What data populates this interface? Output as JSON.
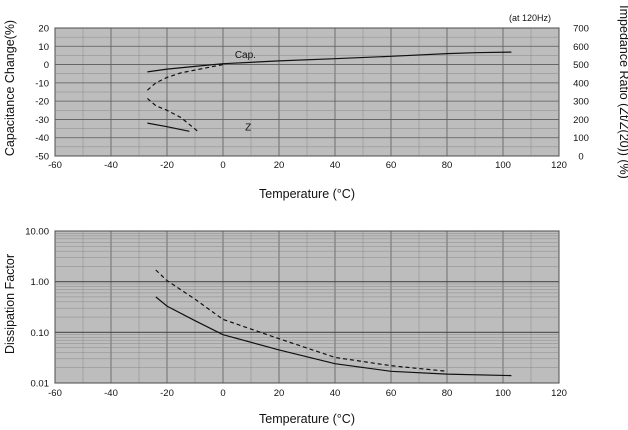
{
  "chart_data": [
    {
      "type": "line",
      "note": "(at 120Hz)",
      "xlabel": "Temperature (°C)",
      "ylabel": "Capacitance Change(%)",
      "y2label": "Impedance Ratio (Zt/Z(20)) (%)",
      "xlim": [
        -60,
        120
      ],
      "ylim": [
        -50,
        20
      ],
      "y2lim": [
        0,
        700
      ],
      "xticks": [
        -60,
        -40,
        -20,
        0,
        20,
        40,
        60,
        80,
        100,
        120
      ],
      "yticks": [
        20,
        10,
        0,
        -10,
        -20,
        -30,
        -40,
        -50
      ],
      "y2ticks": [
        700,
        600,
        500,
        400,
        300,
        200,
        100,
        0
      ],
      "grid": true,
      "labels": [
        {
          "text": "Cap.",
          "x": 8,
          "y": 3.5
        },
        {
          "text": "Z",
          "x": 9,
          "y": -36
        }
      ],
      "series": [
        {
          "style": "solid",
          "axis": "left",
          "x": [
            -27,
            -20,
            -10,
            0,
            20,
            40,
            60,
            80,
            90,
            103
          ],
          "y": [
            -4,
            -2.5,
            -1,
            0.5,
            2,
            3.2,
            4.5,
            6,
            6.5,
            6.8
          ]
        },
        {
          "style": "dashed",
          "axis": "left",
          "x": [
            -27,
            -24,
            -20,
            -15,
            -10,
            -5,
            0
          ],
          "y": [
            -14,
            -10,
            -7,
            -4.5,
            -3,
            -1.5,
            0
          ]
        },
        {
          "style": "solid",
          "axis": "right",
          "x": [
            -27,
            -20,
            -12
          ],
          "y": [
            180,
            160,
            135
          ]
        },
        {
          "style": "dashed",
          "axis": "right",
          "x": [
            -27,
            -24,
            -20,
            -15,
            -9
          ],
          "y": [
            315,
            275,
            250,
            210,
            135
          ]
        }
      ]
    },
    {
      "type": "line",
      "xlabel": "Temperature (°C)",
      "ylabel": "Dissipation Factor",
      "xlim": [
        -60,
        120
      ],
      "ylim": [
        0.01,
        10
      ],
      "yscale": "log",
      "xticks": [
        -60,
        -40,
        -20,
        0,
        20,
        40,
        60,
        80,
        100,
        120
      ],
      "yticks": [
        "10.00",
        "1.00",
        "0.10",
        "0.01"
      ],
      "ytick_values": [
        10,
        1,
        0.1,
        0.01
      ],
      "grid": true,
      "series": [
        {
          "style": "solid",
          "x": [
            -24,
            -20,
            -10,
            0,
            20,
            40,
            60,
            80,
            103
          ],
          "y": [
            0.5,
            0.33,
            0.17,
            0.09,
            0.045,
            0.024,
            0.017,
            0.015,
            0.014
          ]
        },
        {
          "style": "dashed",
          "x": [
            -24,
            -20,
            -10,
            0,
            20,
            40,
            60,
            80
          ],
          "y": [
            1.7,
            1.05,
            0.45,
            0.18,
            0.075,
            0.032,
            0.022,
            0.017
          ]
        }
      ]
    }
  ]
}
